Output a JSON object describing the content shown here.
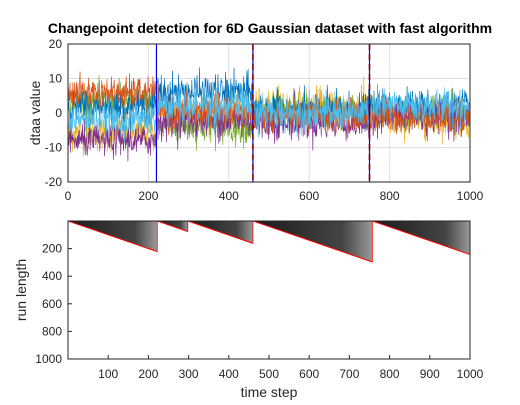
{
  "chart_data": [
    {
      "type": "line",
      "title": "Changepoint detection for 6D Gaussian dataset with fast algorithm",
      "xlabel": "",
      "ylabel": "dtaa value",
      "xlim": [
        0,
        1000
      ],
      "ylim": [
        -20,
        20
      ],
      "xticks": [
        "0",
        "200",
        "400",
        "600",
        "800",
        "1000"
      ],
      "yticks": [
        "-20",
        "-10",
        "0",
        "10",
        "20"
      ],
      "grid": true,
      "n_points": 1000,
      "segments": [
        {
          "start": 0,
          "end": 220,
          "means": [
            2,
            6,
            -6,
            -8,
            3,
            -2
          ],
          "stds": [
            2.5,
            2.2,
            2.5,
            2.3,
            2.5,
            2.2
          ]
        },
        {
          "start": 220,
          "end": 460,
          "means": [
            6,
            0,
            1,
            -2,
            -4,
            2
          ],
          "stds": [
            2.6,
            2.4,
            2.4,
            2.6,
            2.4,
            2.5
          ]
        },
        {
          "start": 460,
          "end": 750,
          "means": [
            1,
            -1,
            2,
            -3,
            0,
            0
          ],
          "stds": [
            2.4,
            2.3,
            2.6,
            2.3,
            2.4,
            2.5
          ]
        },
        {
          "start": 750,
          "end": 1000,
          "means": [
            2,
            -1,
            -2,
            -1,
            1,
            2
          ],
          "stds": [
            2.3,
            2.3,
            2.5,
            2.4,
            2.4,
            2.5
          ]
        }
      ],
      "series": [
        {
          "color": "#0072BD"
        },
        {
          "color": "#D95319"
        },
        {
          "color": "#EDB120"
        },
        {
          "color": "#7E2F8E"
        },
        {
          "color": "#77AC30"
        },
        {
          "color": "#4DBEEE"
        }
      ],
      "true_changepoints": [
        220,
        460,
        750
      ],
      "detected_changepoints": [
        460,
        750
      ],
      "true_cp_color": "#0000FF",
      "detected_cp_color": "#8B0000"
    },
    {
      "type": "heatmap",
      "xlabel": "time step",
      "ylabel": "run length",
      "xlim": [
        0,
        1000
      ],
      "ylim": [
        0,
        1000
      ],
      "y_reversed": true,
      "xticks": [
        "100",
        "200",
        "300",
        "400",
        "500",
        "600",
        "700",
        "800",
        "900",
        "1000"
      ],
      "yticks": [
        "200",
        "400",
        "600",
        "800",
        "1000"
      ],
      "colormap": "gray",
      "max_run_length_path": [
        {
          "from": 0,
          "to": 222
        },
        {
          "from": 222,
          "to": 298
        },
        {
          "from": 298,
          "to": 460
        },
        {
          "from": 460,
          "to": 757
        },
        {
          "from": 757,
          "to": 1000
        }
      ],
      "path_color": "#FF0000"
    }
  ]
}
